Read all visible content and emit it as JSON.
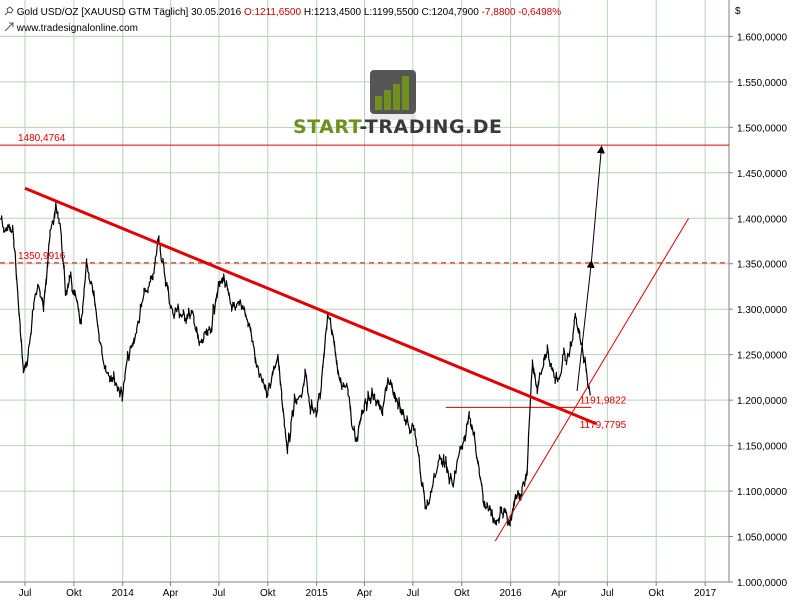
{
  "header": {
    "instrument": "Gold USD/OZ [XAUUSD GTM",
    "period": "Täglich]",
    "date": "30.05.2016",
    "open": "O:1211,6500",
    "high": "H:1213,4500",
    "low": "L:1199,5500",
    "close": "C:1204,7900",
    "change": "-7,8800",
    "change_pct": "-0,6498%",
    "source": "www.tradesignalonline.com",
    "currency": "$"
  },
  "logo": {
    "text_left": "START",
    "text_dash": "-",
    "text_right": "TRADING.DE"
  },
  "colors": {
    "red": "#e00000",
    "price": "#000000",
    "grid": "#b5d4b5",
    "logo_green": "#6f8f1f",
    "logo_dark": "#3a3a3a"
  },
  "chart_data": {
    "type": "line",
    "title": "Gold USD/OZ [XAUUSD GTM Täglich]",
    "xlabel": "",
    "ylabel": "$",
    "ylim": [
      1000,
      1640
    ],
    "xlim": [
      "2013-05-15",
      "2017-02-15"
    ],
    "yticks": [
      "1.600,0000",
      "1.550,0000",
      "1.500,0000",
      "1.450,0000",
      "1.400,0000",
      "1.350,0000",
      "1.300,0000",
      "1.250,0000",
      "1.200,0000",
      "1.150,0000",
      "1.100,0000",
      "1.050,0000",
      "1.000,0000"
    ],
    "ytick_values": [
      1600,
      1550,
      1500,
      1450,
      1400,
      1350,
      1300,
      1250,
      1200,
      1150,
      1100,
      1050,
      1000
    ],
    "xticks": [
      {
        "label": "Jul",
        "date": "2013-07-01"
      },
      {
        "label": "Okt",
        "date": "2013-10-01"
      },
      {
        "label": "2014",
        "date": "2014-01-01"
      },
      {
        "label": "Apr",
        "date": "2014-04-01"
      },
      {
        "label": "Jul",
        "date": "2014-07-01"
      },
      {
        "label": "Okt",
        "date": "2014-10-01"
      },
      {
        "label": "2015",
        "date": "2015-01-01"
      },
      {
        "label": "Apr",
        "date": "2015-04-01"
      },
      {
        "label": "Jul",
        "date": "2015-07-01"
      },
      {
        "label": "Okt",
        "date": "2015-10-01"
      },
      {
        "label": "2016",
        "date": "2016-01-01"
      },
      {
        "label": "Apr",
        "date": "2016-04-01"
      },
      {
        "label": "Jul",
        "date": "2016-07-01"
      },
      {
        "label": "Okt",
        "date": "2016-10-01"
      },
      {
        "label": "2017",
        "date": "2017-01-01"
      }
    ],
    "grid": true,
    "series": [
      {
        "x": [
          "2013-05-16",
          "2013-05-22",
          "2013-06-01",
          "2013-06-10",
          "2013-06-20",
          "2013-06-28",
          "2013-07-05",
          "2013-07-15",
          "2013-07-25",
          "2013-08-05",
          "2013-08-15",
          "2013-08-28",
          "2013-09-05",
          "2013-09-15",
          "2013-09-25",
          "2013-10-05",
          "2013-10-15",
          "2013-10-25",
          "2013-11-05",
          "2013-11-15",
          "2013-11-25",
          "2013-12-05",
          "2013-12-15",
          "2013-12-31",
          "2014-01-10",
          "2014-01-20",
          "2014-02-01",
          "2014-02-10",
          "2014-02-20",
          "2014-03-01",
          "2014-03-10",
          "2014-03-15",
          "2014-03-25",
          "2014-04-05",
          "2014-04-15",
          "2014-04-25",
          "2014-05-05",
          "2014-05-15",
          "2014-05-25",
          "2014-06-05",
          "2014-06-15",
          "2014-06-25",
          "2014-07-05",
          "2014-07-10",
          "2014-07-20",
          "2014-08-01",
          "2014-08-10",
          "2014-08-20",
          "2014-09-01",
          "2014-09-10",
          "2014-09-20",
          "2014-10-01",
          "2014-10-10",
          "2014-10-20",
          "2014-11-01",
          "2014-11-07",
          "2014-11-20",
          "2014-12-01",
          "2014-12-10",
          "2014-12-20",
          "2014-12-31",
          "2015-01-10",
          "2015-01-22",
          "2015-02-01",
          "2015-02-10",
          "2015-02-20",
          "2015-03-01",
          "2015-03-10",
          "2015-03-17",
          "2015-03-25",
          "2015-04-05",
          "2015-04-15",
          "2015-04-25",
          "2015-05-05",
          "2015-05-15",
          "2015-05-25",
          "2015-06-05",
          "2015-06-15",
          "2015-06-25",
          "2015-07-05",
          "2015-07-15",
          "2015-07-24",
          "2015-08-01",
          "2015-08-10",
          "2015-08-20",
          "2015-08-28",
          "2015-09-05",
          "2015-09-15",
          "2015-09-25",
          "2015-10-05",
          "2015-10-15",
          "2015-10-25",
          "2015-11-05",
          "2015-11-15",
          "2015-11-25",
          "2015-12-03",
          "2015-12-10",
          "2015-12-20",
          "2015-12-31",
          "2016-01-10",
          "2016-01-20",
          "2016-02-01",
          "2016-02-11",
          "2016-02-20",
          "2016-03-01",
          "2016-03-10",
          "2016-03-20",
          "2016-04-01",
          "2016-04-10",
          "2016-04-20",
          "2016-05-02",
          "2016-05-10",
          "2016-05-20",
          "2016-05-30"
        ],
        "values": [
          1400,
          1385,
          1390,
          1380,
          1295,
          1230,
          1240,
          1290,
          1330,
          1300,
          1375,
          1410,
          1395,
          1320,
          1330,
          1310,
          1280,
          1350,
          1320,
          1280,
          1245,
          1230,
          1225,
          1205,
          1245,
          1260,
          1290,
          1315,
          1325,
          1340,
          1385,
          1355,
          1325,
          1295,
          1300,
          1290,
          1295,
          1290,
          1260,
          1270,
          1275,
          1315,
          1330,
          1335,
          1310,
          1295,
          1310,
          1295,
          1270,
          1235,
          1220,
          1210,
          1230,
          1245,
          1175,
          1145,
          1195,
          1200,
          1230,
          1195,
          1185,
          1220,
          1300,
          1270,
          1225,
          1210,
          1215,
          1165,
          1155,
          1185,
          1200,
          1205,
          1200,
          1185,
          1225,
          1205,
          1195,
          1180,
          1170,
          1170,
          1120,
          1085,
          1090,
          1115,
          1135,
          1135,
          1120,
          1105,
          1140,
          1150,
          1185,
          1160,
          1110,
          1080,
          1080,
          1060,
          1075,
          1080,
          1060,
          1100,
          1095,
          1120,
          1240,
          1215,
          1240,
          1250,
          1235,
          1220,
          1250,
          1245,
          1290,
          1275,
          1240,
          1205
        ]
      }
    ],
    "annotations": [
      {
        "type": "hline",
        "y": 1480.4764,
        "label": "1480,4764",
        "style": "solid"
      },
      {
        "type": "hline",
        "y": 1350.9916,
        "label": "1350,9916",
        "style": "dashed"
      },
      {
        "type": "hline",
        "y": 1191.9822,
        "label": "1191,9822",
        "style": "solid-thin",
        "x_from": "2015-09-01",
        "x_to": "2016-06-01"
      },
      {
        "type": "trendline",
        "label": "1179,7795",
        "from": {
          "x": "2013-07-01",
          "y": 1433
        },
        "to": {
          "x": "2016-06-10",
          "y": 1174
        },
        "style": "thick"
      },
      {
        "type": "trendline",
        "from": {
          "x": "2015-12-03",
          "y": 1045
        },
        "to": {
          "x": "2016-12-01",
          "y": 1400
        },
        "style": "thin"
      },
      {
        "type": "arrow",
        "from": {
          "x": "2016-05-05",
          "y": 1210
        },
        "to": {
          "x": "2016-06-01",
          "y": 1352
        }
      },
      {
        "type": "arrow",
        "from": {
          "x": "2016-06-01",
          "y": 1352
        },
        "to": {
          "x": "2016-06-20",
          "y": 1478
        }
      }
    ]
  }
}
